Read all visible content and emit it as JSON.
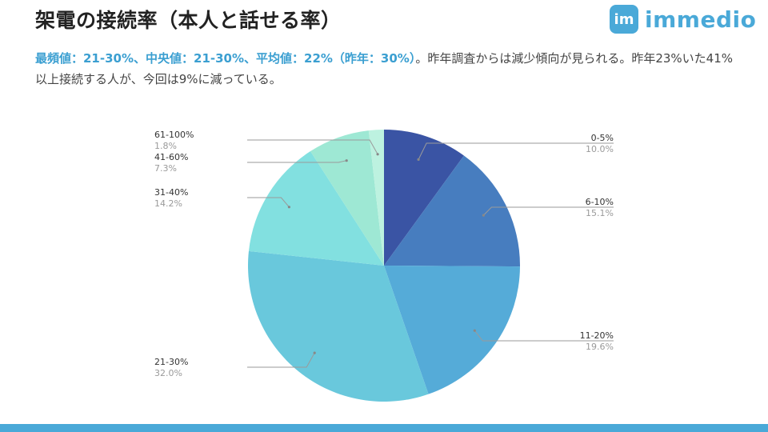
{
  "title": "架電の接続率（本人と話せる率）",
  "logo": {
    "mark": "im",
    "text": "immedio"
  },
  "summary": {
    "highlight": "最頻値：21-30%、中央値：21-30%、平均値：22%（昨年：30%）",
    "rest": "。昨年調査からは減少傾向が見られる。昨年23%いた41%以上接続する人が、今回は9%に減っている。"
  },
  "chart_data": {
    "type": "pie",
    "categories": [
      "0-5%",
      "6-10%",
      "11-20%",
      "21-30%",
      "31-40%",
      "41-60%",
      "61-100%"
    ],
    "values": [
      10.0,
      15.1,
      19.6,
      32.0,
      14.2,
      7.3,
      1.8
    ],
    "value_labels": [
      "10.0%",
      "15.1%",
      "19.6%",
      "32.0%",
      "14.2%",
      "7.3%",
      "1.8%"
    ],
    "colors": [
      "#3a54a4",
      "#477dbf",
      "#55abd8",
      "#69c8dc",
      "#82e0e0",
      "#9ee8d4",
      "#bdf2e0"
    ],
    "start": "12 o'clock",
    "direction": "clockwise"
  }
}
